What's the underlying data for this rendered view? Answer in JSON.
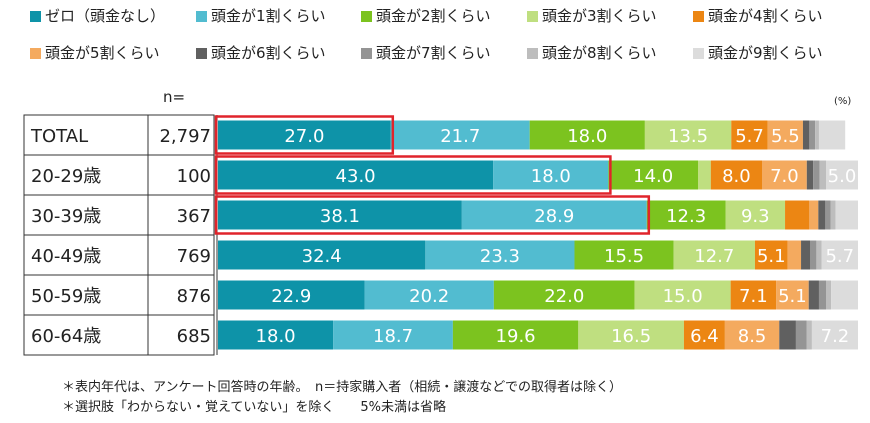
{
  "chart_data": {
    "type": "bar",
    "orientation": "horizontal",
    "stacked": true,
    "unit_label": "(%)",
    "n_header": "n=",
    "legend": [
      {
        "name": "ゼロ（頭金なし）",
        "color": "#0e93a8"
      },
      {
        "name": "頭金が1割くらい",
        "color": "#52bcd0"
      },
      {
        "name": "頭金が2割くらい",
        "color": "#7cc31f"
      },
      {
        "name": "頭金が3割くらい",
        "color": "#bfdf80"
      },
      {
        "name": "頭金が4割くらい",
        "color": "#ec8613"
      },
      {
        "name": "頭金が5割くらい",
        "color": "#f4aa5f"
      },
      {
        "name": "頭金が6割くらい",
        "color": "#606060"
      },
      {
        "name": "頭金が7割くらい",
        "color": "#949494"
      },
      {
        "name": "頭金が8割くらい",
        "color": "#bdbdbd"
      },
      {
        "name": "頭金が9割くらい",
        "color": "#dcdcdc"
      }
    ],
    "rows": [
      {
        "label": "TOTAL",
        "n": "2,797",
        "values": [
          27.0,
          21.7,
          18.0,
          13.5,
          5.7,
          5.5,
          1.0,
          0.9,
          0.6,
          4.1
        ],
        "highlight": 1
      },
      {
        "label": "20-29歳",
        "n": "100",
        "values": [
          43.0,
          18.0,
          14.0,
          2.0,
          8.0,
          7.0,
          1.0,
          1.0,
          1.0,
          5.0
        ],
        "highlight": 2
      },
      {
        "label": "30-39歳",
        "n": "367",
        "values": [
          38.1,
          28.9,
          12.3,
          9.3,
          3.8,
          1.4,
          1.1,
          0.8,
          0.8,
          3.5
        ],
        "highlight": 2
      },
      {
        "label": "40-49歳",
        "n": "769",
        "values": [
          32.4,
          23.3,
          15.5,
          12.7,
          5.1,
          2.1,
          1.4,
          1.0,
          0.8,
          5.7
        ],
        "highlight": 0
      },
      {
        "label": "50-59歳",
        "n": "876",
        "values": [
          22.9,
          20.2,
          22.0,
          15.0,
          7.1,
          5.1,
          1.6,
          1.1,
          0.8,
          4.2
        ],
        "highlight": 0
      },
      {
        "label": "60-64歳",
        "n": "685",
        "values": [
          18.0,
          18.7,
          19.6,
          16.5,
          6.4,
          8.5,
          2.6,
          1.7,
          0.8,
          7.2
        ],
        "highlight": 0
      }
    ],
    "label_threshold": 5,
    "grid": false,
    "legend_position": "top"
  },
  "footnotes": [
    "＊表内年代は、アンケート回答時の年齢。　n＝持家購入者（相続・譲渡などでの取得者は除く）",
    "＊選択肢「わからない・覚えていない」を除く　　5%未満は省略"
  ]
}
